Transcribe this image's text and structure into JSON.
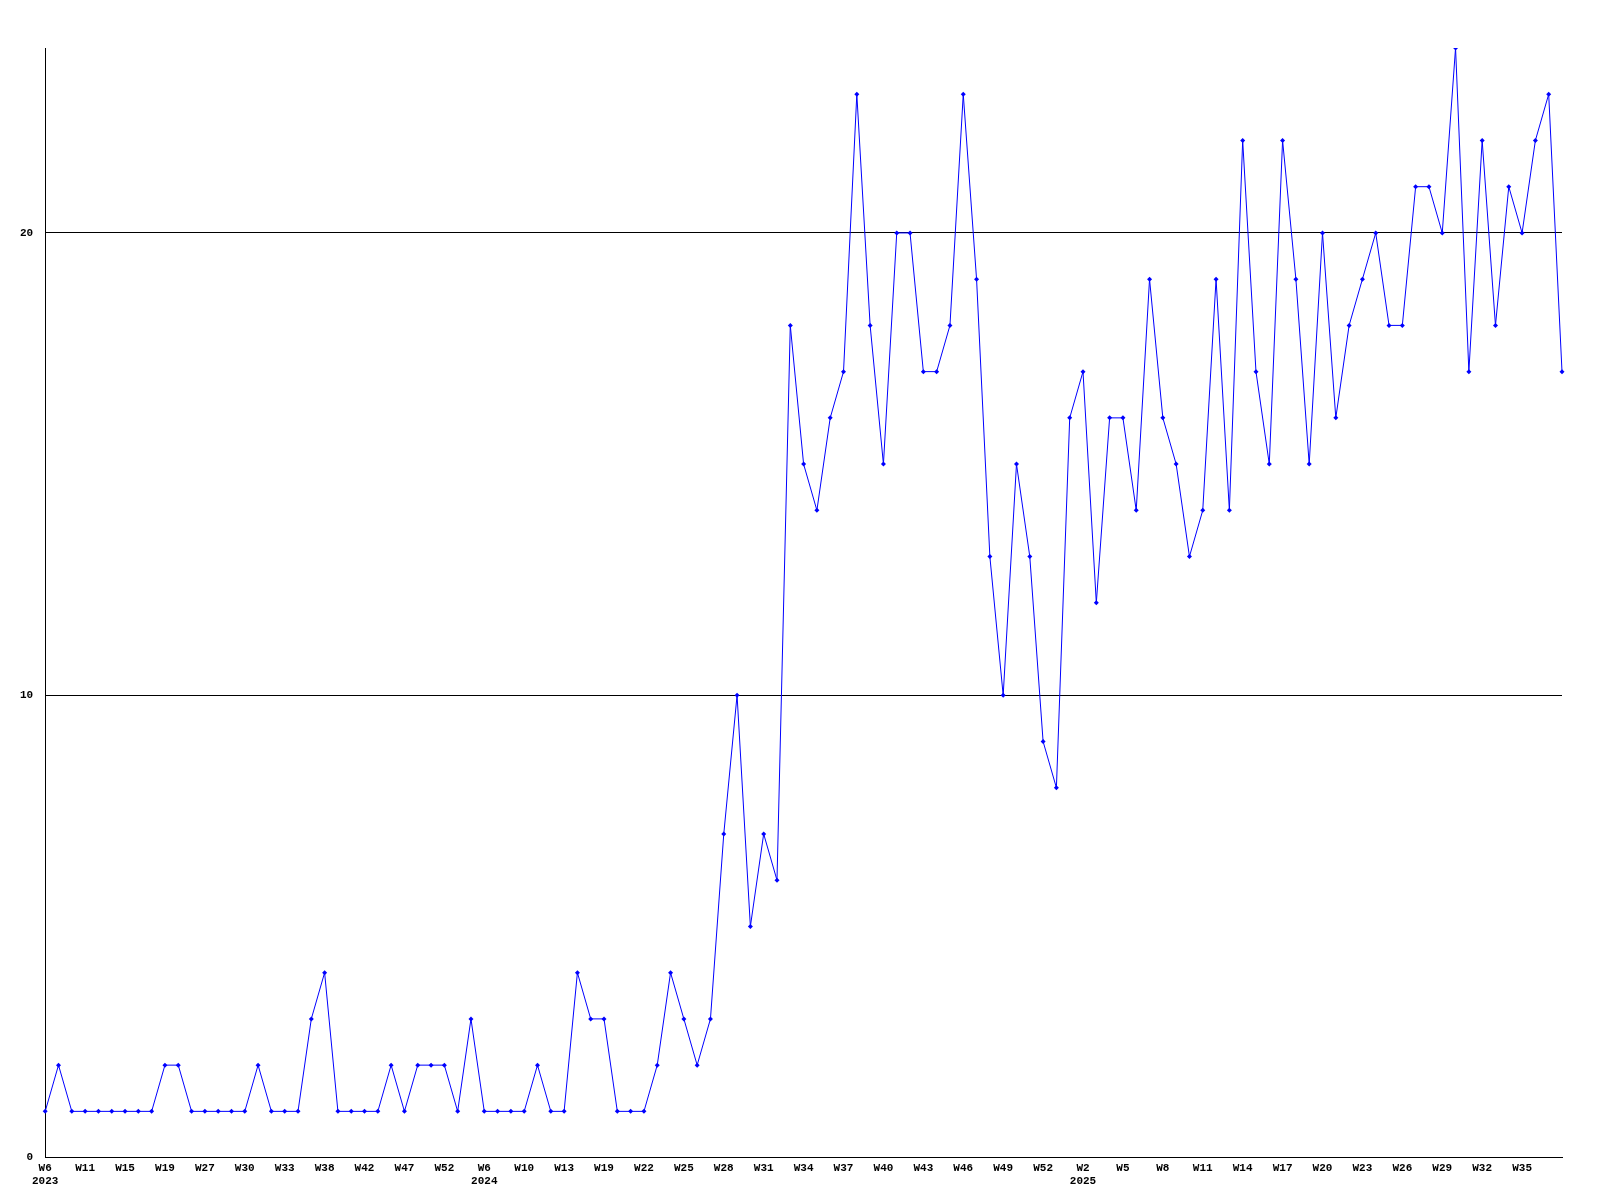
{
  "chart_data": {
    "type": "line",
    "categories": [
      "W6\n2023",
      null,
      null,
      "W11",
      null,
      null,
      "W15",
      null,
      null,
      "W19",
      null,
      null,
      "W27",
      null,
      null,
      "W30",
      null,
      null,
      "W33",
      null,
      null,
      "W38",
      null,
      null,
      "W42",
      null,
      null,
      "W47",
      null,
      null,
      "W52",
      null,
      null,
      "W6\n2024",
      null,
      null,
      "W10",
      null,
      null,
      "W13",
      null,
      null,
      "W19",
      null,
      null,
      "W22",
      null,
      null,
      "W25",
      null,
      null,
      "W28",
      null,
      null,
      "W31",
      null,
      null,
      "W34",
      null,
      null,
      "W37",
      null,
      null,
      "W40",
      null,
      null,
      "W43",
      null,
      null,
      "W46",
      null,
      null,
      "W49",
      null,
      null,
      "W52",
      null,
      null,
      "W2\n2025",
      null,
      null,
      "W5",
      null,
      null,
      "W8",
      null,
      null,
      "W11",
      null,
      null,
      "W14",
      null,
      null,
      "W17",
      null,
      null,
      "W20",
      null,
      null,
      "W23",
      null,
      null,
      "W26",
      null,
      null,
      "W29",
      null,
      null,
      "W32",
      null,
      null,
      "W35",
      null,
      null,
      null
    ],
    "series": [
      {
        "color": "#0000ff",
        "values": [
          1,
          2,
          1,
          1,
          1,
          1,
          1,
          1,
          1,
          2,
          2,
          1,
          1,
          1,
          1,
          1,
          2,
          1,
          1,
          1,
          3,
          4,
          1,
          1,
          1,
          1,
          2,
          1,
          2,
          2,
          2,
          1,
          3,
          1,
          1,
          1,
          1,
          2,
          1,
          1,
          4,
          3,
          3,
          1,
          1,
          1,
          2,
          4,
          3,
          2,
          3,
          7,
          10,
          5,
          7,
          6,
          18,
          15,
          14,
          16,
          17,
          23,
          18,
          15,
          20,
          20,
          17,
          17,
          18,
          23,
          19,
          13,
          10,
          15,
          13,
          9,
          8,
          16,
          17,
          12,
          16,
          16,
          14,
          19,
          16,
          15,
          13,
          14,
          19,
          14,
          22,
          17,
          15,
          22,
          19,
          15,
          20,
          16,
          18,
          19,
          20,
          18,
          18,
          21,
          21,
          20,
          24,
          17,
          22,
          18,
          21,
          20,
          22,
          23,
          17
        ]
      }
    ],
    "ylim": [
      0,
      24
    ],
    "yticks": [
      0,
      10,
      20
    ],
    "grid": "y",
    "legend": false,
    "marker": "diamond",
    "line_style": "solid"
  }
}
